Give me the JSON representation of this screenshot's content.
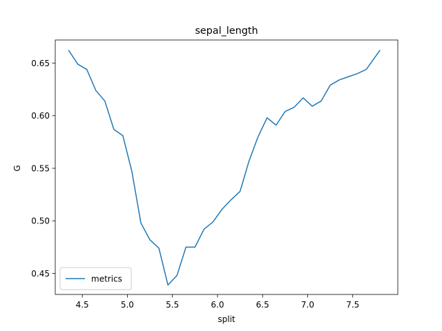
{
  "chart_data": {
    "type": "line",
    "title": "sepal_length",
    "xlabel": "split",
    "ylabel": "G",
    "xlim": [
      4.2,
      8.0
    ],
    "ylim": [
      0.43,
      0.672
    ],
    "xticks": [
      4.5,
      5.0,
      5.5,
      6.0,
      6.5,
      7.0,
      7.5
    ],
    "xtick_labels": [
      "4.5",
      "5.0",
      "5.5",
      "6.0",
      "6.5",
      "7.0",
      "7.5"
    ],
    "yticks": [
      0.45,
      0.5,
      0.55,
      0.6,
      0.65
    ],
    "ytick_labels": [
      "0.45",
      "0.50",
      "0.55",
      "0.60",
      "0.65"
    ],
    "grid": false,
    "legend_position": "lower-left",
    "series": [
      {
        "name": "metrics",
        "color": "#1f77b4",
        "x": [
          4.35,
          4.45,
          4.55,
          4.65,
          4.75,
          4.85,
          4.95,
          5.05,
          5.15,
          5.25,
          5.35,
          5.45,
          5.55,
          5.65,
          5.75,
          5.85,
          5.95,
          6.05,
          6.15,
          6.25,
          6.35,
          6.45,
          6.55,
          6.65,
          6.75,
          6.85,
          6.95,
          7.05,
          7.15,
          7.25,
          7.35,
          7.45,
          7.55,
          7.65,
          7.8
        ],
        "y": [
          0.662,
          0.649,
          0.644,
          0.624,
          0.614,
          0.587,
          0.581,
          0.547,
          0.498,
          0.482,
          0.474,
          0.439,
          0.448,
          0.475,
          0.475,
          0.492,
          0.499,
          0.511,
          0.52,
          0.528,
          0.557,
          0.58,
          0.598,
          0.591,
          0.604,
          0.608,
          0.617,
          0.609,
          0.614,
          0.629,
          0.634,
          0.637,
          0.64,
          0.644,
          0.662
        ]
      }
    ]
  }
}
